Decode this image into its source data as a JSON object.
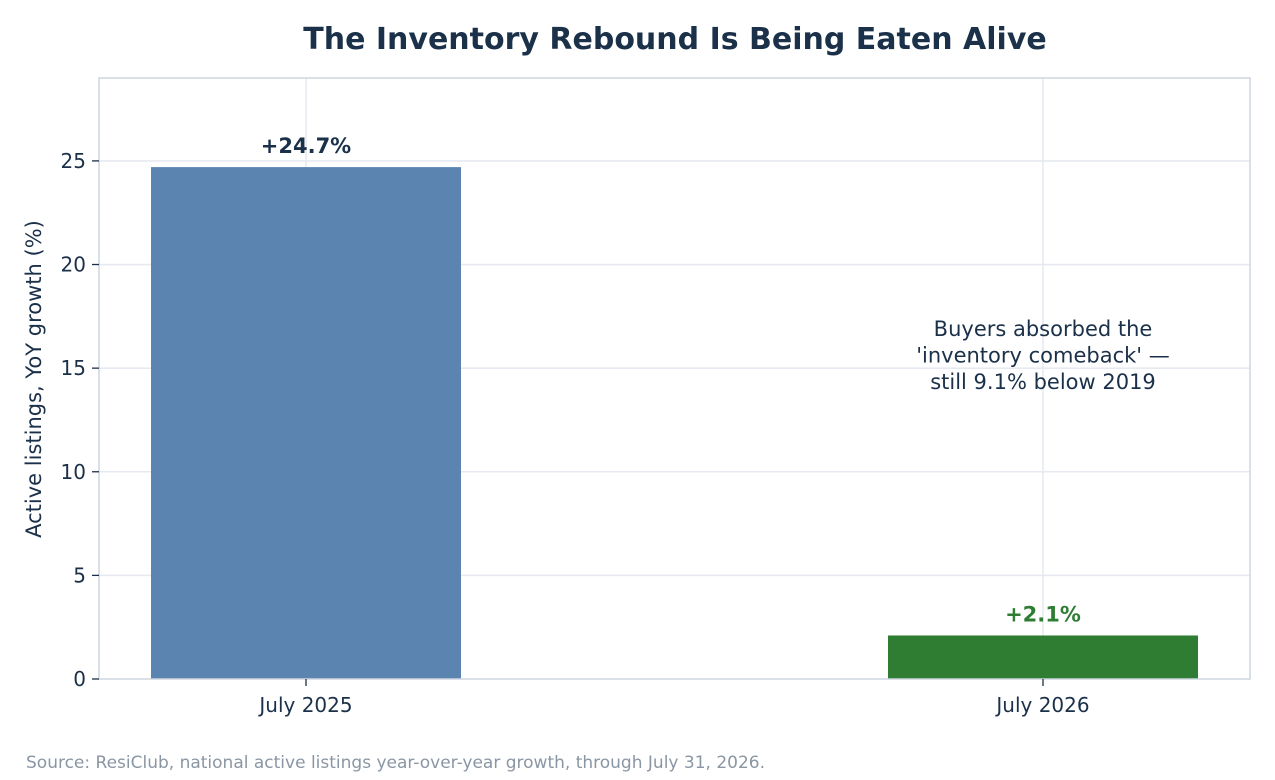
{
  "chart_data": {
    "type": "bar",
    "title": "The Inventory Rebound Is Being Eaten Alive",
    "xlabel": "",
    "ylabel": "Active listings, YoY growth (%)",
    "categories": [
      "July 2025",
      "July 2026"
    ],
    "values": [
      24.7,
      2.1
    ],
    "data_labels": [
      "+24.7%",
      "+2.1%"
    ],
    "bar_colors": [
      "#5b84b1",
      "#2e7d32"
    ],
    "label_colors": [
      "#1b3049",
      "#2e7d32"
    ],
    "ylim": [
      0,
      29
    ],
    "yticks": [
      0,
      5,
      10,
      15,
      20,
      25
    ],
    "grid": true,
    "annotation": {
      "lines": [
        "Buyers absorbed the",
        "'inventory comeback' —",
        "still 9.1% below 2019"
      ]
    },
    "source": "Source: ResiClub, national active listings year-over-year growth, through July 31, 2026."
  },
  "colors": {
    "text": "#1b3049",
    "grid": "#e6e9ef",
    "frame": "#cfd6e0",
    "source": "#8a96a3"
  }
}
